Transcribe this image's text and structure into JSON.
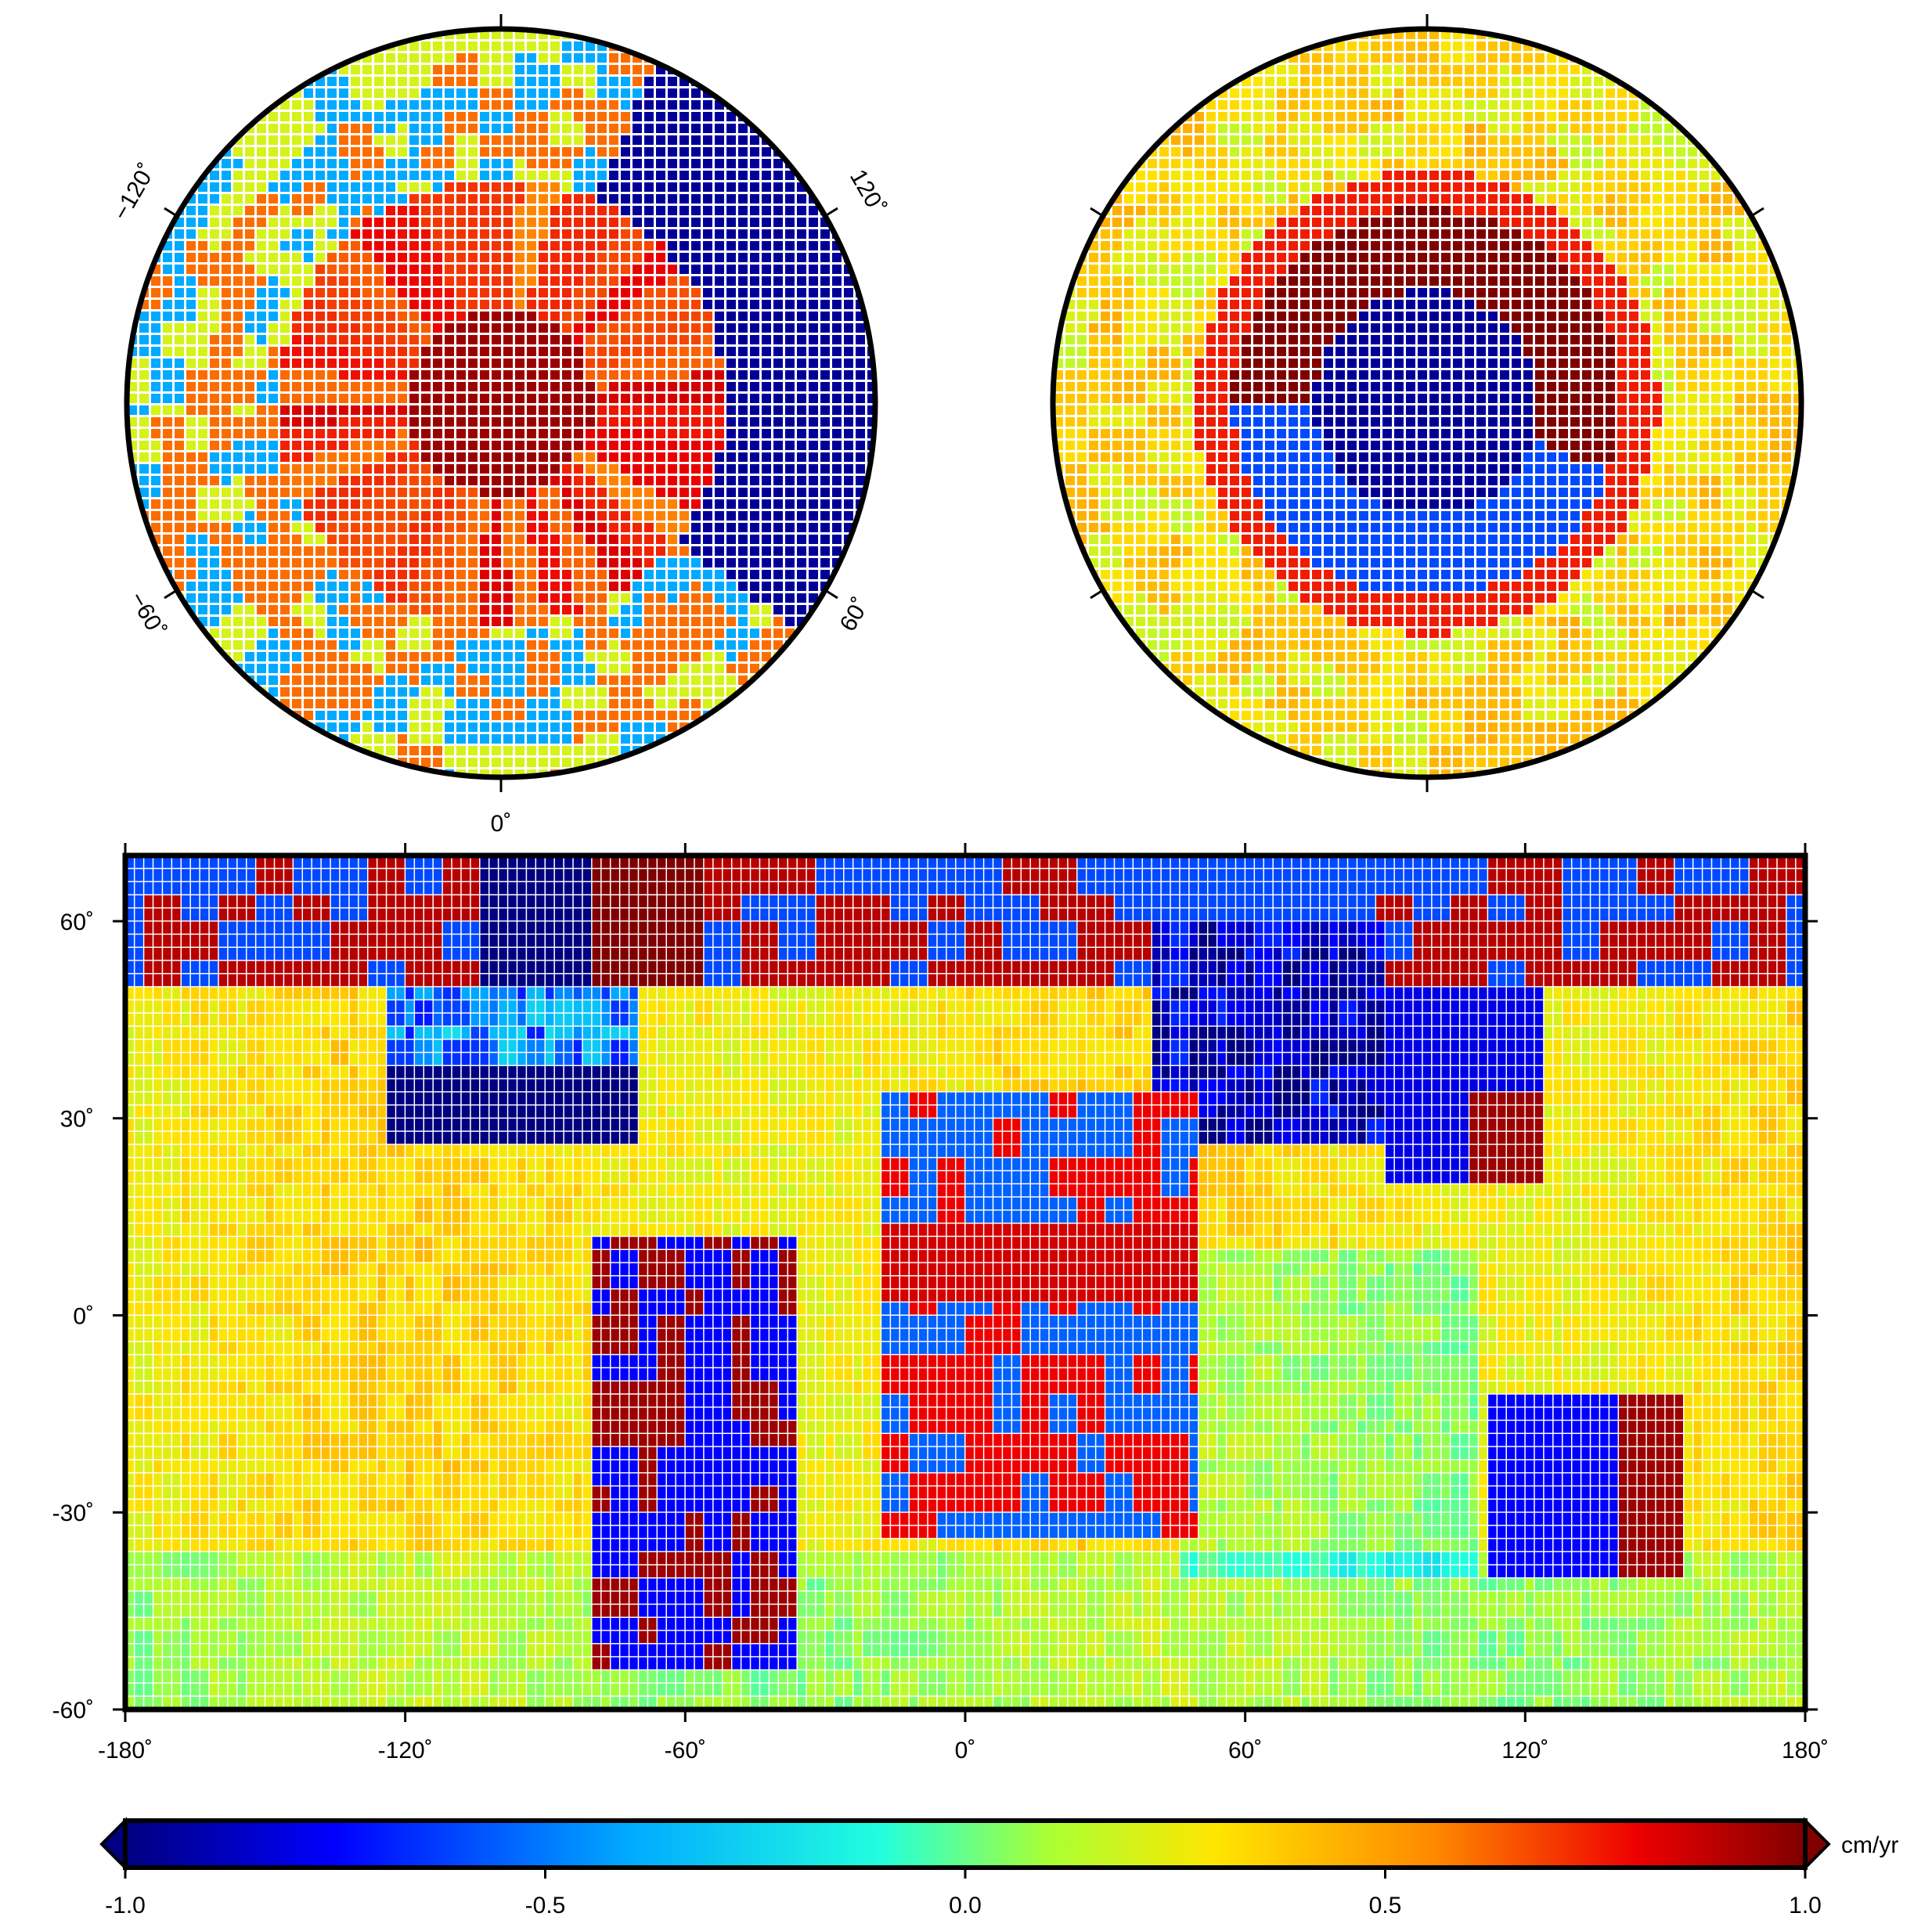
{
  "north_polar_map": {
    "tick_labels": {
      "left_upper": "−120˚",
      "right_upper": "120˚",
      "left_lower": "−60˚",
      "right_lower": "60˚",
      "bottom": "0˚"
    }
  },
  "south_polar_map": {},
  "global_map": {
    "x_tick_labels": [
      "-180˚",
      "-120˚",
      "-60˚",
      "0˚",
      "60˚",
      "120˚",
      "180˚"
    ],
    "x_tick_values": [
      -180,
      -120,
      -60,
      0,
      60,
      120,
      180
    ],
    "y_tick_labels": [
      "60˚",
      "30˚",
      "0˚",
      "-30˚",
      "-60˚"
    ],
    "y_tick_values": [
      60,
      30,
      0,
      -30,
      -60
    ],
    "lon_range": [
      -180,
      180
    ],
    "lat_range": [
      -60,
      70
    ]
  },
  "colorbar": {
    "unit_label": "cm/yr",
    "tick_labels": [
      "-1.0",
      "-0.5",
      "0.0",
      "0.5",
      "1.0"
    ],
    "tick_values": [
      -1.0,
      -0.5,
      0.0,
      0.5,
      1.0
    ],
    "range": [
      -1.0,
      1.0
    ],
    "colormap": [
      "#000080",
      "#0000ff",
      "#00aaff",
      "#22ffdd",
      "#aaff33",
      "#ffe500",
      "#ff8800",
      "#ee0000",
      "#800000"
    ]
  }
}
